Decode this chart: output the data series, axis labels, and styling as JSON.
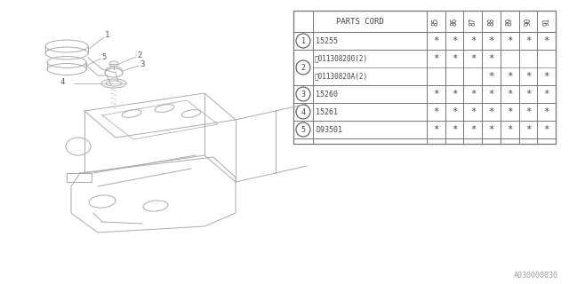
{
  "col_headers": [
    "85",
    "86",
    "87",
    "88",
    "89",
    "90",
    "91"
  ],
  "rows": [
    {
      "num": "1",
      "part": "15255",
      "b_prefix": false,
      "sub_rows": null,
      "stars": [
        true,
        true,
        true,
        true,
        true,
        true,
        true
      ]
    },
    {
      "num": "2",
      "part": "011308200(2)",
      "b_prefix": true,
      "sub_rows": [
        {
          "part": "01130820A(2)",
          "b_prefix": true,
          "stars": [
            false,
            false,
            false,
            true,
            true,
            true,
            true
          ]
        }
      ],
      "stars": [
        true,
        true,
        true,
        true,
        false,
        false,
        false
      ]
    },
    {
      "num": "3",
      "part": "15260",
      "b_prefix": false,
      "sub_rows": null,
      "stars": [
        true,
        true,
        true,
        true,
        true,
        true,
        true
      ]
    },
    {
      "num": "4",
      "part": "15261",
      "b_prefix": false,
      "sub_rows": null,
      "stars": [
        true,
        true,
        true,
        true,
        true,
        true,
        true
      ]
    },
    {
      "num": "5",
      "part": "D93501",
      "b_prefix": false,
      "sub_rows": null,
      "stars": [
        true,
        true,
        true,
        true,
        true,
        true,
        true
      ]
    }
  ],
  "watermark": "A030000030"
}
